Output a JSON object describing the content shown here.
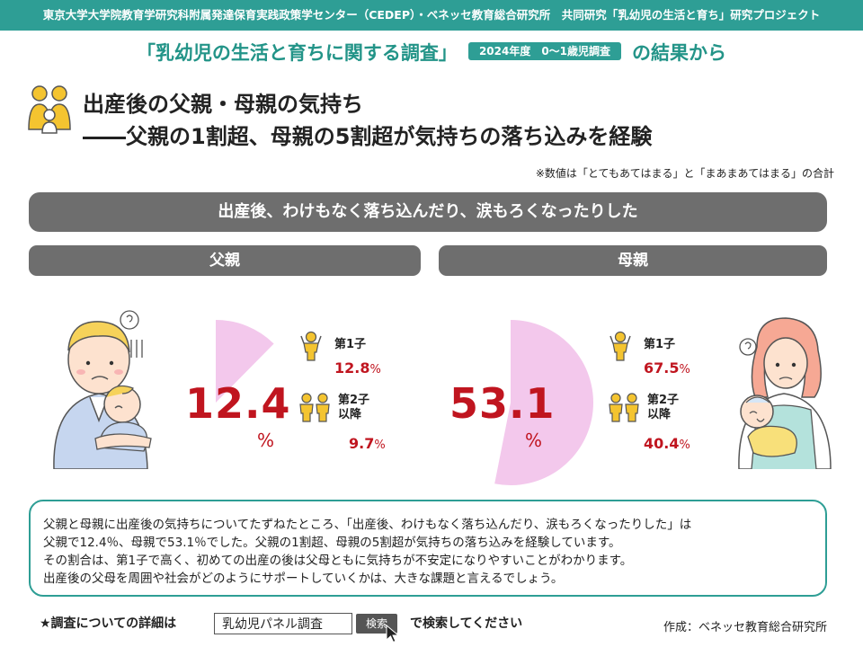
{
  "header": {
    "org_line": "東京大学大学院教育学研究科附属発達保育実践政策学センター（CEDEP）・ベネッセ教育総合研究所　共同研究「乳幼児の生活と育ち」研究プロジェクト",
    "survey_title": "「乳幼児の生活と育ちに関する調査」",
    "survey_badge": "2024年度　0～1歳児調査",
    "survey_suffix": "の結果から"
  },
  "title": {
    "line1": "出産後の父親・母親の気持ち",
    "line2": "――父親の1割超、母親の5割超が気持ちの落ち込みを経験"
  },
  "note": "※数値は「とてもあてはまる」と「まあまあてはまる」の合計",
  "question": "出産後、わけもなく落ち込んだり、涙もろくなったりした",
  "colors": {
    "accent": "#2e9e95",
    "value": "#c0151f",
    "pie": "#f3c8ec",
    "header_gray": "#6e6e6e"
  },
  "chart_data": [
    {
      "type": "pie",
      "panel": "父親",
      "total": {
        "value": "12.4",
        "unit": "%"
      },
      "value": 12.4,
      "breakdown": [
        {
          "label": "第1子",
          "value": "12.8",
          "unit": "%",
          "icon": "single-child-icon"
        },
        {
          "label": "第2子\n以降",
          "label_line1": "第2子",
          "label_line2": "以降",
          "value": "9.7",
          "unit": "%",
          "icon": "two-children-icon"
        }
      ]
    },
    {
      "type": "pie",
      "panel": "母親",
      "total": {
        "value": "53.1",
        "unit": "%"
      },
      "value": 53.1,
      "breakdown": [
        {
          "label": "第1子",
          "value": "67.5",
          "unit": "%",
          "icon": "single-child-icon"
        },
        {
          "label_line1": "第2子",
          "label_line2": "以降",
          "value": "40.4",
          "unit": "%",
          "icon": "two-children-icon"
        }
      ]
    }
  ],
  "summary": [
    "父親と母親に出産後の気持ちについてたずねたところ、「出産後、わけもなく落ち込んだり、涙もろくなったりした」は",
    "父親で12.4％、母親で53.1％でした。父親の1割超、母親の5割超が気持ちの落ち込みを経験しています。",
    "その割合は、第1子で高く、初めての出産の後は父母ともに気持ちが不安定になりやすいことがわかります。",
    "出産後の父母を周囲や社会がどのようにサポートしていくかは、大きな課題と言えるでしょう。"
  ],
  "footer": {
    "detail_label": "★調査についての詳細は",
    "search_value": "乳幼児パネル調査",
    "search_button": "検索",
    "search_suffix": "で検索してください",
    "credit": "作成：ベネッセ教育総合研究所"
  }
}
